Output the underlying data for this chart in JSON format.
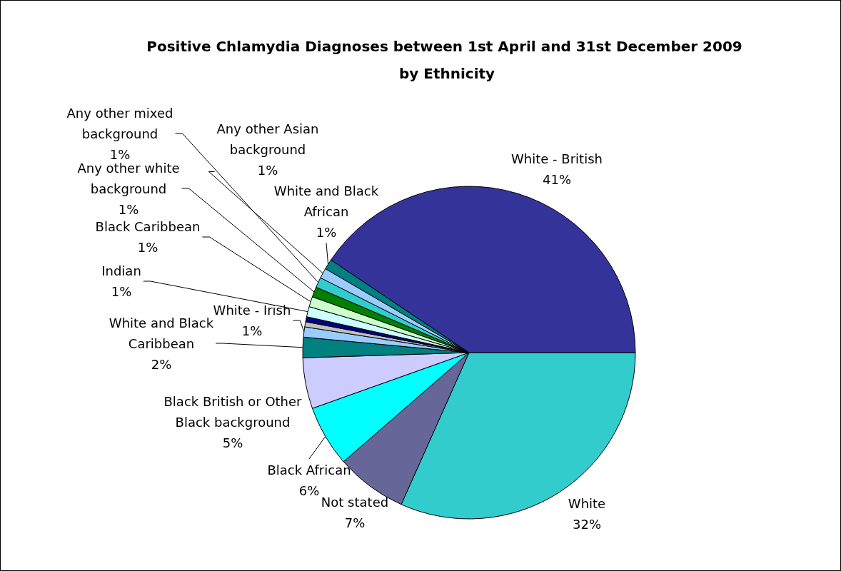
{
  "chart_data": {
    "type": "pie",
    "title": "Positive Chlamydia Diagnoses between 1st April and 31st December 2009 by Ethnicity",
    "categories": [
      "White",
      "Not stated",
      "Black African",
      "Black British or Other Black background",
      "White and Black Caribbean",
      "White - Irish",
      null,
      null,
      "Indian",
      "Black Caribbean",
      "Any other white background",
      "Any other mixed background",
      "Any other Asian background",
      "White and Black African",
      "White - British"
    ],
    "values": [
      32,
      7,
      6,
      5,
      2,
      1,
      0.5,
      0.5,
      1,
      1,
      1,
      1,
      1,
      1,
      41
    ],
    "value_labels": [
      "32%",
      "7%",
      "6%",
      "5%",
      "2%",
      "1%",
      null,
      null,
      "1%",
      "1%",
      "1%",
      "1%",
      "1%",
      "1%",
      "41%"
    ],
    "colors": [
      "#33cccc",
      "#666699",
      "#00ffff",
      "#ccccff",
      "#008080",
      "#99ccff",
      "#c0c0c0",
      "#000080",
      "#ccffff",
      "#ccffcc",
      "#008000",
      "#33cccc",
      "#99ccff",
      "#008080",
      "#333399"
    ]
  }
}
